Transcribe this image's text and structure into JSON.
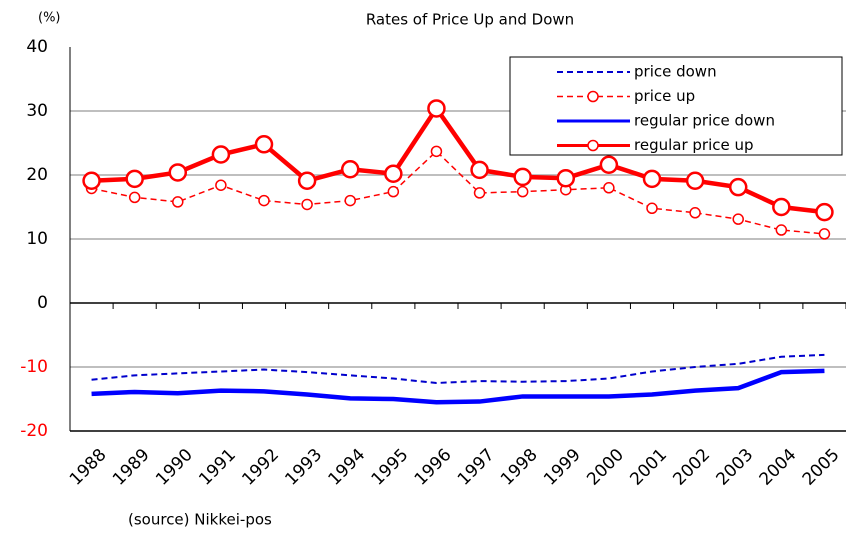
{
  "chart_data": {
    "type": "line",
    "title": "Rates of Price Up and Down",
    "y_label": "(%)",
    "source": "(source) Nikkei-pos",
    "categories": [
      "1988",
      "1989",
      "1990",
      "1991",
      "1992",
      "1993",
      "1994",
      "1995",
      "1996",
      "1997",
      "1998",
      "1999",
      "2000",
      "2001",
      "2002",
      "2003",
      "2004",
      "2005"
    ],
    "series": [
      {
        "name": "price down",
        "color": "#0000cc",
        "dash": true,
        "marker": false,
        "width": 2,
        "values": [
          -12.0,
          -11.3,
          -11.0,
          -10.7,
          -10.4,
          -10.8,
          -11.3,
          -11.8,
          -12.5,
          -12.2,
          -12.3,
          -12.2,
          -11.8,
          -10.7,
          -10.0,
          -9.5,
          -8.4,
          -8.1
        ]
      },
      {
        "name": "price up",
        "color": "#ff0000",
        "dash": true,
        "marker": true,
        "width": 1.5,
        "values": [
          17.9,
          16.5,
          15.8,
          18.4,
          16.0,
          15.4,
          16.0,
          17.4,
          23.7,
          17.2,
          17.4,
          17.7,
          18.0,
          14.8,
          14.1,
          13.1,
          11.4,
          10.8
        ]
      },
      {
        "name": "regular price down",
        "color": "#0000ff",
        "dash": false,
        "marker": false,
        "width": 4.5,
        "values": [
          -14.2,
          -13.9,
          -14.1,
          -13.7,
          -13.8,
          -14.3,
          -14.9,
          -15.0,
          -15.5,
          -15.4,
          -14.6,
          -14.6,
          -14.6,
          -14.3,
          -13.7,
          -13.3,
          -10.8,
          -10.6
        ]
      },
      {
        "name": "regular price up",
        "color": "#ff0000",
        "dash": false,
        "marker": true,
        "width": 4.5,
        "values": [
          19.1,
          19.4,
          20.4,
          23.2,
          24.8,
          19.1,
          20.9,
          20.2,
          30.4,
          20.8,
          19.7,
          19.5,
          21.6,
          19.4,
          19.1,
          18.1,
          15.0,
          14.2
        ]
      }
    ],
    "ylim": [
      -20,
      40
    ],
    "yticks": [
      -20,
      -10,
      0,
      10,
      20,
      30,
      40
    ],
    "grid": true,
    "negative_tick_color": "#ff0000",
    "legend": "upper right"
  }
}
